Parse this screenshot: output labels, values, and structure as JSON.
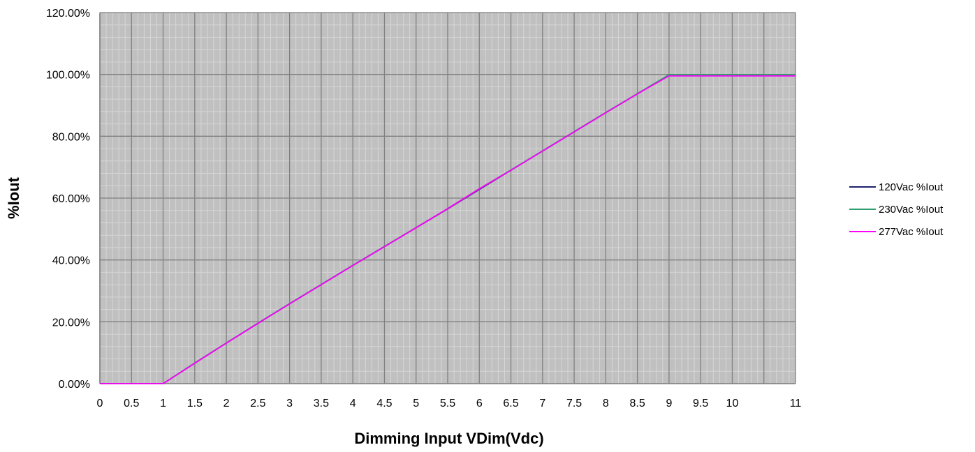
{
  "chart_data": {
    "type": "line",
    "xlabel": "Dimming Input VDim(Vdc)",
    "ylabel": "%Iout",
    "x_ticks": [
      "0",
      "0.5",
      "1",
      "1.5",
      "2",
      "2.5",
      "3",
      "3.5",
      "4",
      "4.5",
      "5",
      "5.5",
      "6",
      "6.5",
      "7",
      "7.5",
      "8",
      "8.5",
      "9",
      "9.5",
      "10",
      "11"
    ],
    "y_ticks": [
      "0.00%",
      "20.00%",
      "40.00%",
      "60.00%",
      "80.00%",
      "100.00%",
      "120.00%"
    ],
    "xlim": [
      0,
      11
    ],
    "ylim": [
      0,
      120
    ],
    "grid": true,
    "background": "#c0c0c0",
    "legend_position": "right",
    "series": [
      {
        "name": "120Vac %Iout",
        "color": "#1f1f6e",
        "x": [
          0,
          1,
          1.5,
          2,
          2.5,
          3,
          3.5,
          4,
          4.5,
          5,
          5.5,
          6,
          6.5,
          7,
          7.5,
          8,
          8.5,
          9,
          9.5,
          10,
          11
        ],
        "y": [
          0,
          0,
          6.6,
          13.1,
          19.5,
          25.8,
          32.0,
          38.2,
          44.3,
          50.4,
          56.5,
          62.8,
          69.0,
          75.2,
          81.4,
          87.6,
          93.7,
          99.8,
          99.8,
          99.8,
          99.8
        ]
      },
      {
        "name": "230Vac %Iout",
        "color": "#2e9e6e",
        "x": [
          0,
          1,
          1.5,
          2,
          2.5,
          3,
          3.5,
          4,
          4.5,
          5,
          5.5,
          6,
          6.5,
          7,
          7.5,
          8,
          8.5,
          9,
          9.5,
          10,
          11
        ],
        "y": [
          0,
          0,
          6.7,
          13.2,
          19.6,
          25.9,
          32.1,
          38.3,
          44.4,
          50.5,
          56.6,
          63.0,
          69.1,
          75.3,
          81.5,
          87.7,
          93.8,
          99.9,
          99.9,
          99.9,
          99.9
        ]
      },
      {
        "name": "277Vac %Iout",
        "color": "#ff00ff",
        "x": [
          0,
          1,
          1.5,
          2,
          2.5,
          3,
          3.5,
          4,
          4.5,
          5,
          5.5,
          6,
          6.5,
          7,
          7.5,
          8,
          8.5,
          9,
          9.5,
          10,
          11
        ],
        "y": [
          0,
          0,
          6.6,
          13.1,
          19.5,
          25.8,
          32.0,
          38.2,
          44.3,
          50.4,
          56.6,
          63.0,
          69.0,
          75.2,
          81.4,
          87.6,
          93.7,
          99.5,
          99.5,
          99.5,
          99.5
        ]
      }
    ]
  }
}
